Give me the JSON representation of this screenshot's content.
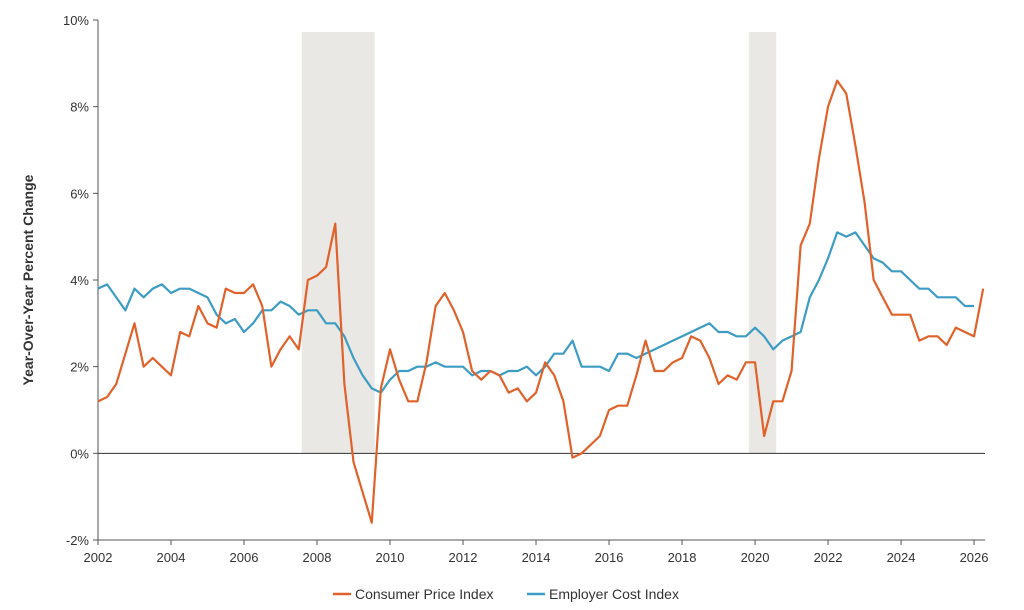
{
  "chart_data": {
    "type": "line",
    "title": "",
    "xlabel": "",
    "ylabel": "Year-Over-Year Percent Change",
    "xlim": [
      2002,
      2026.3
    ],
    "ylim": [
      -2,
      10
    ],
    "x_ticks": [
      2002,
      2004,
      2006,
      2008,
      2010,
      2012,
      2014,
      2016,
      2018,
      2020,
      2022,
      2024,
      2026
    ],
    "x_tick_labels": [
      "2002",
      "2004",
      "2006",
      "2008",
      "2010",
      "2012",
      "2014",
      "2016",
      "2018",
      "2020",
      "2022",
      "2024",
      "2026"
    ],
    "y_ticks": [
      -2,
      0,
      2,
      4,
      6,
      8,
      10
    ],
    "y_tick_labels": [
      "-2%",
      "0%",
      "2%",
      "4%",
      "6%",
      "8%",
      "10%"
    ],
    "recessions": [
      [
        2007.58,
        2009.58
      ],
      [
        2019.83,
        2020.58
      ]
    ],
    "zero_line": true,
    "grid": false,
    "legend": "bottom-center",
    "series": [
      {
        "name": "Consumer Price Index",
        "color": "#e0622a",
        "points": [
          [
            2002.0,
            1.2
          ],
          [
            2002.25,
            1.3
          ],
          [
            2002.5,
            1.6
          ],
          [
            2002.75,
            2.3
          ],
          [
            2003.0,
            3.0
          ],
          [
            2003.25,
            2.0
          ],
          [
            2003.5,
            2.2
          ],
          [
            2003.75,
            2.0
          ],
          [
            2004.0,
            1.8
          ],
          [
            2004.25,
            2.8
          ],
          [
            2004.5,
            2.7
          ],
          [
            2004.75,
            3.4
          ],
          [
            2005.0,
            3.0
          ],
          [
            2005.25,
            2.9
          ],
          [
            2005.5,
            3.8
          ],
          [
            2005.75,
            3.7
          ],
          [
            2006.0,
            3.7
          ],
          [
            2006.25,
            3.9
          ],
          [
            2006.5,
            3.4
          ],
          [
            2006.75,
            2.0
          ],
          [
            2007.0,
            2.4
          ],
          [
            2007.25,
            2.7
          ],
          [
            2007.5,
            2.4
          ],
          [
            2007.75,
            4.0
          ],
          [
            2008.0,
            4.1
          ],
          [
            2008.25,
            4.3
          ],
          [
            2008.5,
            5.3
          ],
          [
            2008.75,
            1.6
          ],
          [
            2009.0,
            -0.2
          ],
          [
            2009.25,
            -0.9
          ],
          [
            2009.5,
            -1.6
          ],
          [
            2009.75,
            1.5
          ],
          [
            2010.0,
            2.4
          ],
          [
            2010.25,
            1.7
          ],
          [
            2010.5,
            1.2
          ],
          [
            2010.75,
            1.2
          ],
          [
            2011.0,
            2.1
          ],
          [
            2011.25,
            3.4
          ],
          [
            2011.5,
            3.7
          ],
          [
            2011.75,
            3.3
          ],
          [
            2012.0,
            2.8
          ],
          [
            2012.25,
            1.9
          ],
          [
            2012.5,
            1.7
          ],
          [
            2012.75,
            1.9
          ],
          [
            2013.0,
            1.8
          ],
          [
            2013.25,
            1.4
          ],
          [
            2013.5,
            1.5
          ],
          [
            2013.75,
            1.2
          ],
          [
            2014.0,
            1.4
          ],
          [
            2014.25,
            2.1
          ],
          [
            2014.5,
            1.8
          ],
          [
            2014.75,
            1.2
          ],
          [
            2015.0,
            -0.1
          ],
          [
            2015.25,
            0.0
          ],
          [
            2015.5,
            0.2
          ],
          [
            2015.75,
            0.4
          ],
          [
            2016.0,
            1.0
          ],
          [
            2016.25,
            1.1
          ],
          [
            2016.5,
            1.1
          ],
          [
            2016.75,
            1.8
          ],
          [
            2017.0,
            2.6
          ],
          [
            2017.25,
            1.9
          ],
          [
            2017.5,
            1.9
          ],
          [
            2017.75,
            2.1
          ],
          [
            2018.0,
            2.2
          ],
          [
            2018.25,
            2.7
          ],
          [
            2018.5,
            2.6
          ],
          [
            2018.75,
            2.2
          ],
          [
            2019.0,
            1.6
          ],
          [
            2019.25,
            1.8
          ],
          [
            2019.5,
            1.7
          ],
          [
            2019.75,
            2.1
          ],
          [
            2020.0,
            2.1
          ],
          [
            2020.25,
            0.4
          ],
          [
            2020.5,
            1.2
          ],
          [
            2020.75,
            1.2
          ],
          [
            2021.0,
            1.9
          ],
          [
            2021.25,
            4.8
          ],
          [
            2021.5,
            5.3
          ],
          [
            2021.75,
            6.8
          ],
          [
            2022.0,
            8.0
          ],
          [
            2022.25,
            8.6
          ],
          [
            2022.5,
            8.3
          ],
          [
            2022.75,
            7.1
          ],
          [
            2023.0,
            5.8
          ],
          [
            2023.25,
            4.0
          ],
          [
            2023.5,
            3.6
          ],
          [
            2023.75,
            3.2
          ],
          [
            2024.0,
            3.2
          ],
          [
            2024.25,
            3.2
          ],
          [
            2024.5,
            2.6
          ],
          [
            2024.75,
            2.7
          ],
          [
            2025.0,
            2.7
          ],
          [
            2025.25,
            2.5
          ],
          [
            2025.5,
            2.9
          ],
          [
            2025.75,
            2.8
          ],
          [
            2026.0,
            2.7
          ],
          [
            2026.25,
            3.8
          ]
        ]
      },
      {
        "name": "Employer Cost Index",
        "color": "#3d9cc4",
        "points": [
          [
            2002.0,
            3.8
          ],
          [
            2002.25,
            3.9
          ],
          [
            2002.5,
            3.6
          ],
          [
            2002.75,
            3.3
          ],
          [
            2003.0,
            3.8
          ],
          [
            2003.25,
            3.6
          ],
          [
            2003.5,
            3.8
          ],
          [
            2003.75,
            3.9
          ],
          [
            2004.0,
            3.7
          ],
          [
            2004.25,
            3.8
          ],
          [
            2004.5,
            3.8
          ],
          [
            2004.75,
            3.7
          ],
          [
            2005.0,
            3.6
          ],
          [
            2005.25,
            3.2
          ],
          [
            2005.5,
            3.0
          ],
          [
            2005.75,
            3.1
          ],
          [
            2006.0,
            2.8
          ],
          [
            2006.25,
            3.0
          ],
          [
            2006.5,
            3.3
          ],
          [
            2006.75,
            3.3
          ],
          [
            2007.0,
            3.5
          ],
          [
            2007.25,
            3.4
          ],
          [
            2007.5,
            3.2
          ],
          [
            2007.75,
            3.3
          ],
          [
            2008.0,
            3.3
          ],
          [
            2008.25,
            3.0
          ],
          [
            2008.5,
            3.0
          ],
          [
            2008.75,
            2.7
          ],
          [
            2009.0,
            2.2
          ],
          [
            2009.25,
            1.8
          ],
          [
            2009.5,
            1.5
          ],
          [
            2009.75,
            1.4
          ],
          [
            2010.0,
            1.7
          ],
          [
            2010.25,
            1.9
          ],
          [
            2010.5,
            1.9
          ],
          [
            2010.75,
            2.0
          ],
          [
            2011.0,
            2.0
          ],
          [
            2011.25,
            2.1
          ],
          [
            2011.5,
            2.0
          ],
          [
            2011.75,
            2.0
          ],
          [
            2012.0,
            2.0
          ],
          [
            2012.25,
            1.8
          ],
          [
            2012.5,
            1.9
          ],
          [
            2012.75,
            1.9
          ],
          [
            2013.0,
            1.8
          ],
          [
            2013.25,
            1.9
          ],
          [
            2013.5,
            1.9
          ],
          [
            2013.75,
            2.0
          ],
          [
            2014.0,
            1.8
          ],
          [
            2014.25,
            2.0
          ],
          [
            2014.5,
            2.3
          ],
          [
            2014.75,
            2.3
          ],
          [
            2015.0,
            2.6
          ],
          [
            2015.25,
            2.0
          ],
          [
            2015.5,
            2.0
          ],
          [
            2015.75,
            2.0
          ],
          [
            2016.0,
            1.9
          ],
          [
            2016.25,
            2.3
          ],
          [
            2016.5,
            2.3
          ],
          [
            2016.75,
            2.2
          ],
          [
            2017.0,
            2.3
          ],
          [
            2017.25,
            2.4
          ],
          [
            2017.5,
            2.5
          ],
          [
            2017.75,
            2.6
          ],
          [
            2018.0,
            2.7
          ],
          [
            2018.25,
            2.8
          ],
          [
            2018.5,
            2.9
          ],
          [
            2018.75,
            3.0
          ],
          [
            2019.0,
            2.8
          ],
          [
            2019.25,
            2.8
          ],
          [
            2019.5,
            2.7
          ],
          [
            2019.75,
            2.7
          ],
          [
            2020.0,
            2.9
          ],
          [
            2020.25,
            2.7
          ],
          [
            2020.5,
            2.4
          ],
          [
            2020.75,
            2.6
          ],
          [
            2021.0,
            2.7
          ],
          [
            2021.25,
            2.8
          ],
          [
            2021.5,
            3.6
          ],
          [
            2021.75,
            4.0
          ],
          [
            2022.0,
            4.5
          ],
          [
            2022.25,
            5.1
          ],
          [
            2022.5,
            5.0
          ],
          [
            2022.75,
            5.1
          ],
          [
            2023.0,
            4.8
          ],
          [
            2023.25,
            4.5
          ],
          [
            2023.5,
            4.4
          ],
          [
            2023.75,
            4.2
          ],
          [
            2024.0,
            4.2
          ],
          [
            2024.25,
            4.0
          ],
          [
            2024.5,
            3.8
          ],
          [
            2024.75,
            3.8
          ],
          [
            2025.0,
            3.6
          ],
          [
            2025.25,
            3.6
          ],
          [
            2025.5,
            3.6
          ],
          [
            2025.75,
            3.4
          ],
          [
            2026.0,
            3.4
          ]
        ]
      }
    ]
  }
}
